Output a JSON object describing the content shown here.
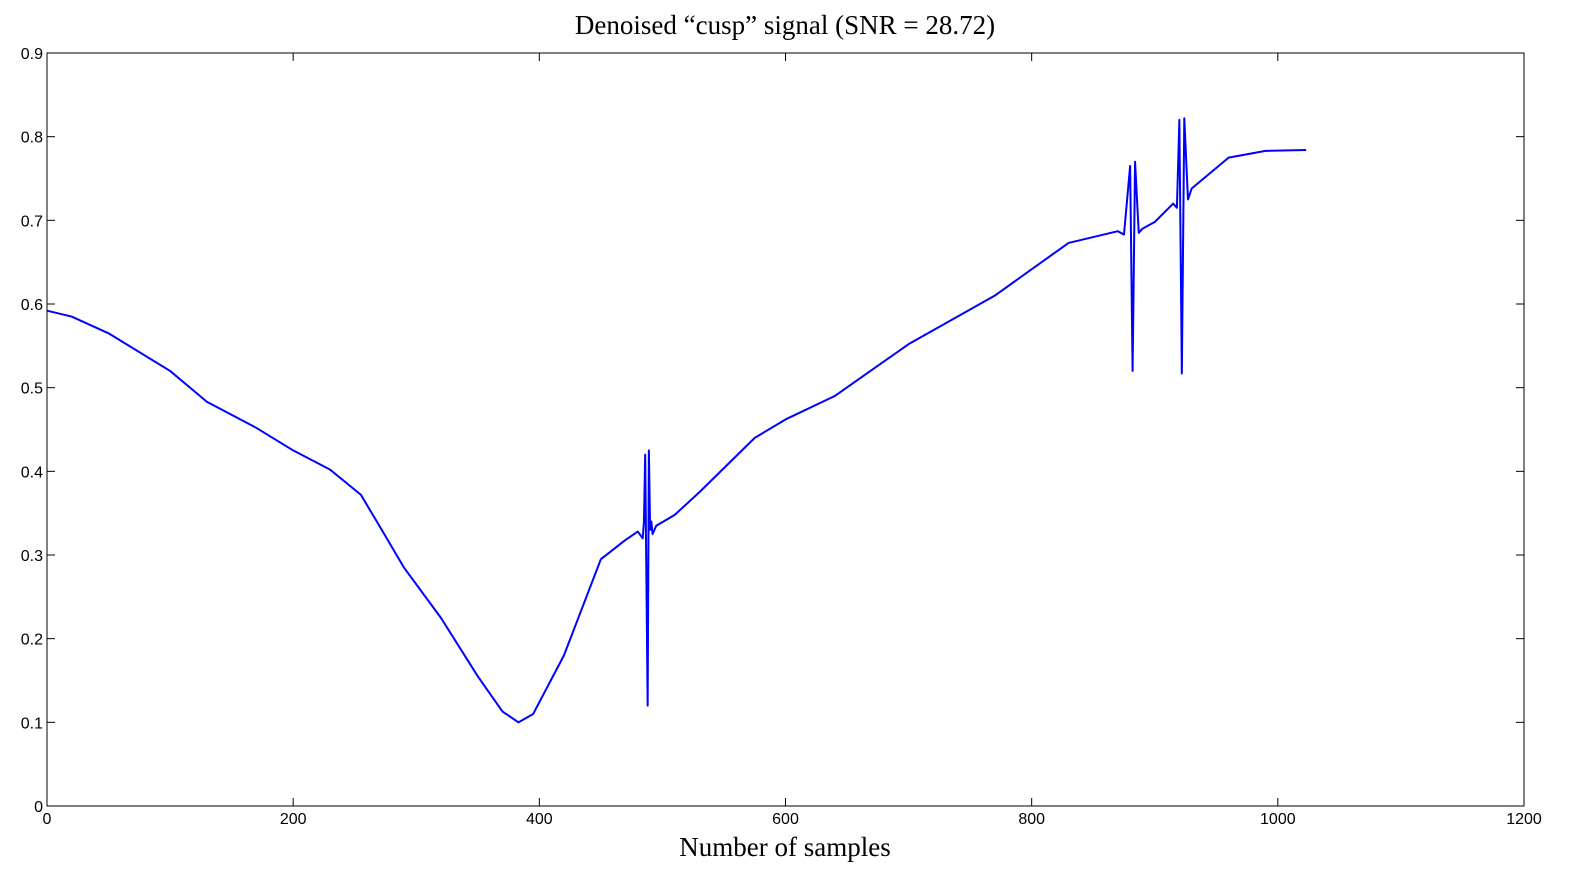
{
  "chart_data": {
    "type": "line",
    "title": "Denoised “cusp” signal (SNR = 28.72)",
    "x_label": "Number of samples",
    "xlim": [
      0,
      1200
    ],
    "xticks": [
      0,
      200,
      400,
      600,
      800,
      1000,
      1200
    ],
    "ylim": [
      0,
      0.9
    ],
    "yticks": [
      0,
      0.1,
      0.2,
      0.3,
      0.4,
      0.5,
      0.6,
      0.7,
      0.8,
      0.9
    ],
    "series": [
      {
        "color": "#0000ff",
        "x": [
          0,
          20,
          50,
          100,
          130,
          170,
          200,
          230,
          255,
          270,
          290,
          320,
          350,
          370,
          383,
          395,
          420,
          450,
          470,
          480,
          484,
          485,
          486,
          487,
          488,
          489,
          490,
          491,
          492,
          495,
          510,
          530,
          575,
          600,
          640,
          700,
          770,
          830,
          870,
          875,
          880,
          882,
          884,
          887,
          890,
          900,
          915,
          918,
          920,
          922,
          924,
          927,
          930,
          960,
          990,
          1023
        ],
        "values": [
          0.592,
          0.585,
          0.565,
          0.52,
          0.483,
          0.452,
          0.425,
          0.402,
          0.372,
          0.335,
          0.285,
          0.225,
          0.155,
          0.113,
          0.1,
          0.11,
          0.18,
          0.295,
          0.318,
          0.328,
          0.32,
          0.34,
          0.42,
          0.27,
          0.12,
          0.425,
          0.33,
          0.34,
          0.325,
          0.335,
          0.348,
          0.375,
          0.44,
          0.462,
          0.49,
          0.552,
          0.61,
          0.673,
          0.687,
          0.683,
          0.765,
          0.52,
          0.77,
          0.685,
          0.69,
          0.698,
          0.72,
          0.715,
          0.82,
          0.517,
          0.822,
          0.725,
          0.738,
          0.775,
          0.783,
          0.784
        ]
      }
    ]
  }
}
